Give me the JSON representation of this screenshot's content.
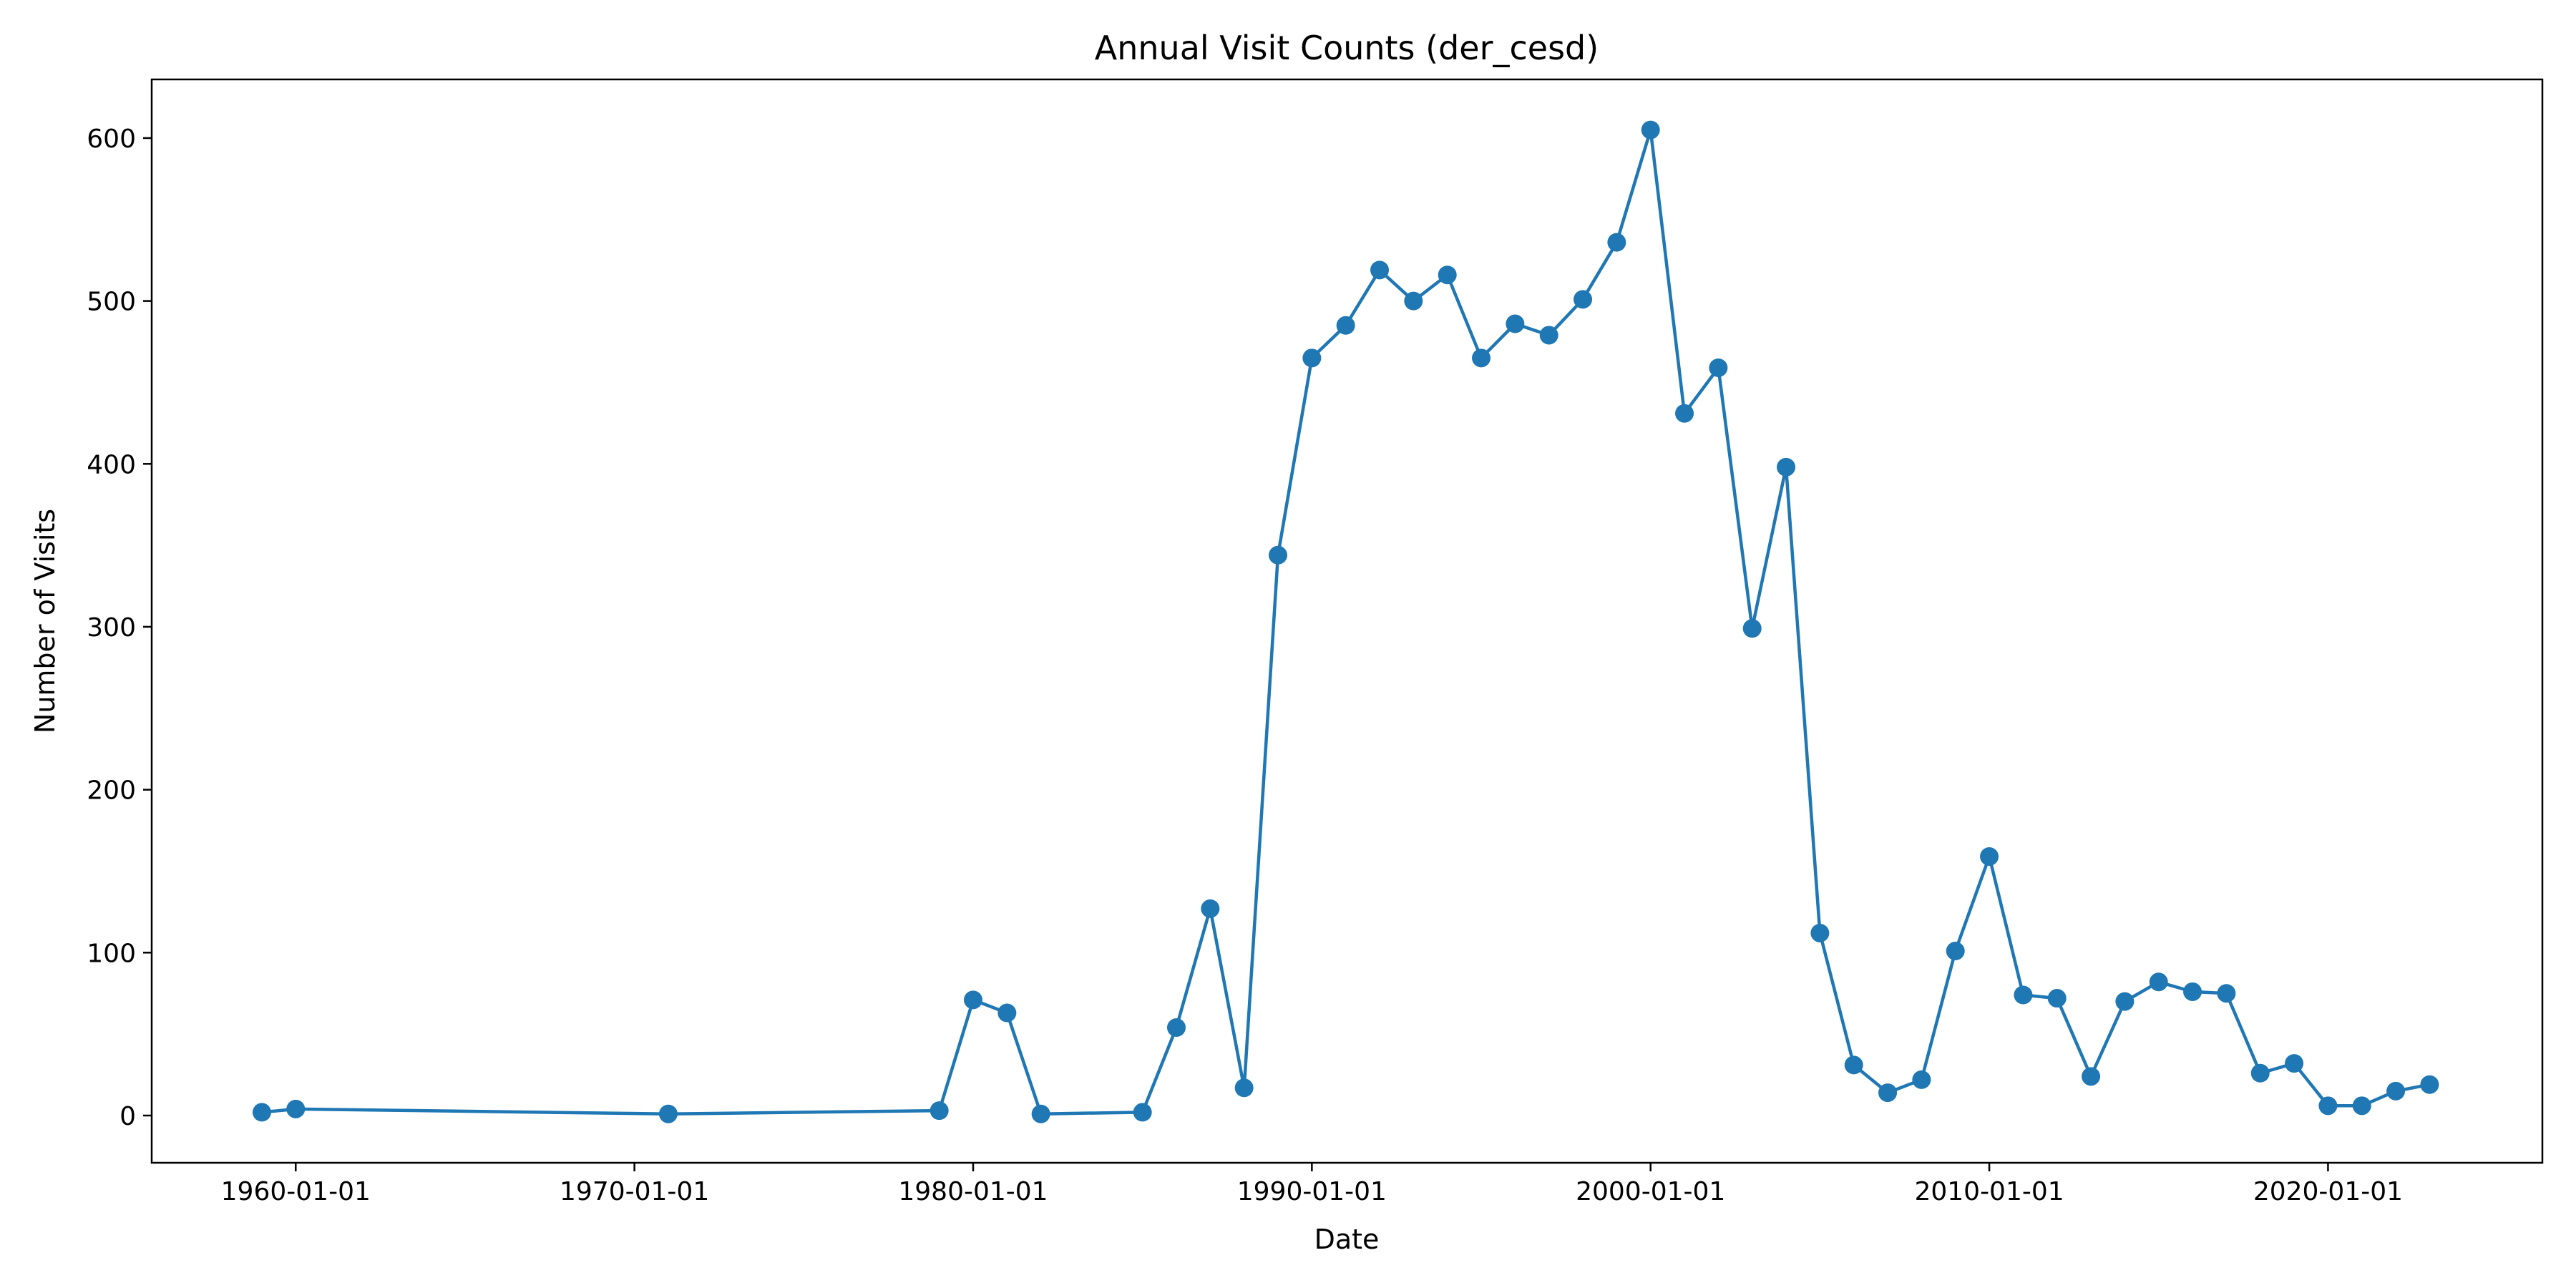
{
  "chart_data": {
    "type": "line",
    "title": "Annual Visit Counts (der_cesd)",
    "xlabel": "Date",
    "ylabel": "Number of Visits",
    "x_tick_labels": [
      "1960-01-01",
      "1970-01-01",
      "1980-01-01",
      "1990-01-01",
      "2000-01-01",
      "2010-01-01",
      "2020-01-01"
    ],
    "y_tick_labels": [
      "0",
      "100",
      "200",
      "300",
      "400",
      "500",
      "600"
    ],
    "xlim": [
      "1955-10-01",
      "2026-05-01"
    ],
    "ylim": [
      -29,
      636
    ],
    "grid": false,
    "legend": "none",
    "series": [
      {
        "color": "#1f77b4",
        "marker": "circle",
        "x": [
          "1959-01-01",
          "1960-01-01",
          "1971-01-01",
          "1979-01-01",
          "1980-01-01",
          "1981-01-01",
          "1982-01-01",
          "1985-01-01",
          "1986-01-01",
          "1987-01-01",
          "1988-01-01",
          "1989-01-01",
          "1990-01-01",
          "1991-01-01",
          "1992-01-01",
          "1993-01-01",
          "1994-01-01",
          "1995-01-01",
          "1996-01-01",
          "1997-01-01",
          "1998-01-01",
          "1999-01-01",
          "2000-01-01",
          "2001-01-01",
          "2002-01-01",
          "2003-01-01",
          "2004-01-01",
          "2005-01-01",
          "2006-01-01",
          "2007-01-01",
          "2008-01-01",
          "2009-01-01",
          "2010-01-01",
          "2011-01-01",
          "2012-01-01",
          "2013-01-01",
          "2014-01-01",
          "2015-01-01",
          "2016-01-01",
          "2017-01-01",
          "2018-01-01",
          "2019-01-01",
          "2020-01-01",
          "2021-01-01",
          "2022-01-01",
          "2023-01-01"
        ],
        "y": [
          2,
          4,
          1,
          3,
          71,
          63,
          1,
          2,
          54,
          127,
          17,
          344,
          465,
          485,
          519,
          500,
          516,
          465,
          486,
          479,
          501,
          536,
          605,
          431,
          459,
          299,
          398,
          112,
          31,
          14,
          22,
          101,
          159,
          74,
          72,
          24,
          70,
          82,
          76,
          75,
          26,
          32,
          6,
          6,
          15,
          19
        ]
      }
    ]
  }
}
